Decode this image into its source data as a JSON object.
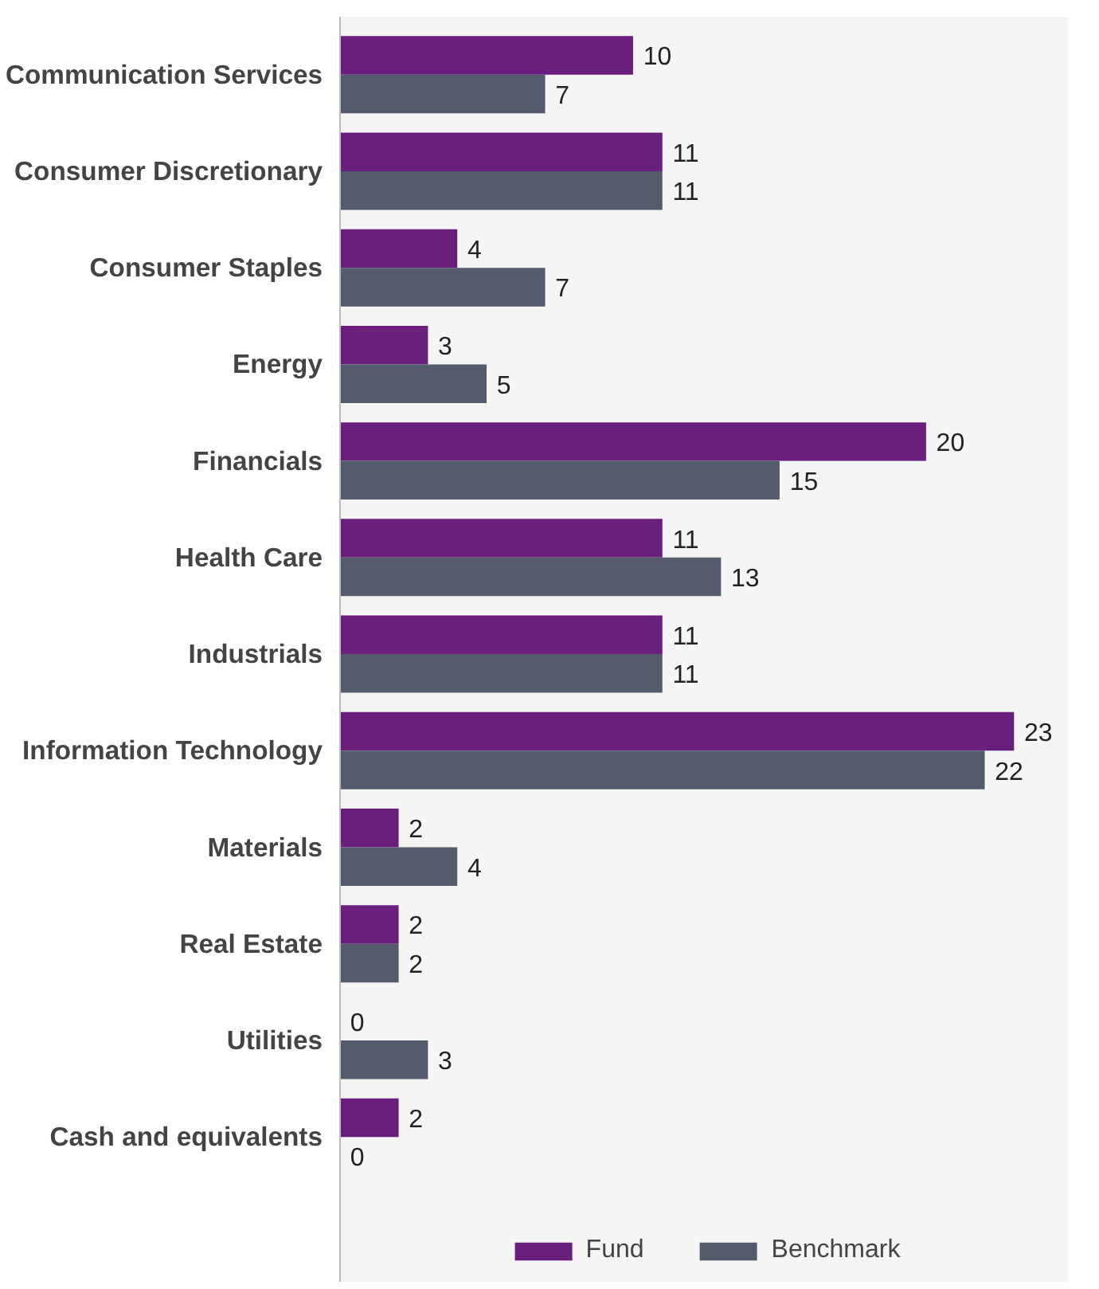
{
  "chart_data": {
    "type": "bar",
    "orientation": "horizontal",
    "categories": [
      "Communication Services",
      "Consumer Discretionary",
      "Consumer Staples",
      "Energy",
      "Financials",
      "Health Care",
      "Industrials",
      "Information Technology",
      "Materials",
      "Real Estate",
      "Utilities",
      "Cash and equivalents"
    ],
    "series": [
      {
        "name": "Fund",
        "color": "#6b1f7c",
        "values": [
          10,
          11,
          4,
          3,
          20,
          11,
          11,
          23,
          2,
          2,
          0,
          2
        ]
      },
      {
        "name": "Benchmark",
        "color": "#535b6c",
        "values": [
          7,
          11,
          7,
          5,
          15,
          13,
          11,
          22,
          4,
          2,
          3,
          0
        ]
      }
    ],
    "data_labels": true,
    "legend": "bottom",
    "grid": false
  }
}
